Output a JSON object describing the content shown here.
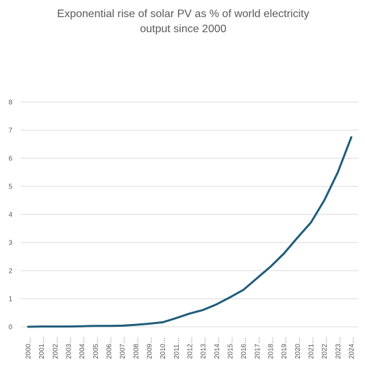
{
  "chart_data": {
    "type": "line",
    "title": "Exponential rise of solar PV as % of world electricity output since 2000",
    "xlabel": "",
    "ylabel": "",
    "categories": [
      "2000…",
      "2001…",
      "2002…",
      "2003…",
      "2004…",
      "2005…",
      "2006…",
      "2007…",
      "2008…",
      "2009…",
      "2010…",
      "2011…",
      "2012…",
      "2013…",
      "2014…",
      "2015…",
      "2016…",
      "2017…",
      "2018…",
      "2019…",
      "2020…",
      "2021…",
      "2022…",
      "2023…",
      "2024…"
    ],
    "series": [
      {
        "values": [
          0.0,
          0.01,
          0.01,
          0.01,
          0.02,
          0.03,
          0.03,
          0.04,
          0.07,
          0.11,
          0.16,
          0.31,
          0.47,
          0.6,
          0.8,
          1.05,
          1.32,
          1.73,
          2.14,
          2.61,
          3.17,
          3.71,
          4.51,
          5.5,
          6.75
        ],
        "color": "#1f5c7a"
      }
    ],
    "ylim": [
      0,
      8
    ],
    "yticks": [
      0,
      1,
      2,
      3,
      4,
      5,
      6,
      7,
      8
    ],
    "grid": true,
    "legend": "none"
  }
}
